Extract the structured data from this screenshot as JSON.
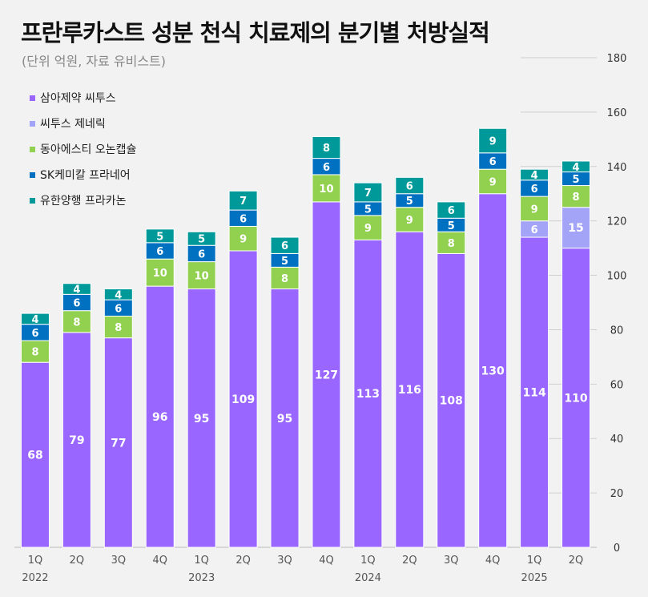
{
  "title": "프란루카스트 성분 천식 치료제의 분기별 처방실적",
  "subtitle": "(단위 억원, 자료 유비스트)",
  "legend": [
    {
      "label": "삼아제약 씨투스",
      "color": "#9966ff"
    },
    {
      "label": "씨투스 제네릭",
      "color": "#a3a3f7"
    },
    {
      "label": "동아에스티 오논캡슐",
      "color": "#92d050"
    },
    {
      "label": "SK케미칼 프라네어",
      "color": "#0070c0"
    },
    {
      "label": "유한양행 프라카논",
      "color": "#00999a"
    }
  ],
  "chart_data": {
    "type": "bar",
    "stacked": true,
    "categories": [
      "1Q",
      "2Q",
      "3Q",
      "4Q",
      "1Q",
      "2Q",
      "3Q",
      "4Q",
      "1Q",
      "2Q",
      "3Q",
      "4Q",
      "1Q",
      "2Q"
    ],
    "year_labels": [
      {
        "label": "2022",
        "category_index": 0
      },
      {
        "label": "2023",
        "category_index": 4
      },
      {
        "label": "2024",
        "category_index": 8
      },
      {
        "label": "2025",
        "category_index": 12
      }
    ],
    "series": [
      {
        "name": "삼아제약 씨투스",
        "color": "#9966ff",
        "values": [
          68,
          79,
          77,
          96,
          95,
          109,
          95,
          127,
          113,
          116,
          108,
          130,
          114,
          110
        ]
      },
      {
        "name": "씨투스 제네릭",
        "color": "#a3a3f7",
        "values": [
          null,
          null,
          null,
          null,
          null,
          null,
          null,
          null,
          null,
          null,
          null,
          null,
          6,
          15
        ]
      },
      {
        "name": "동아에스티 오논캡슐",
        "color": "#92d050",
        "values": [
          8,
          8,
          8,
          10,
          10,
          9,
          8,
          10,
          9,
          9,
          8,
          9,
          9,
          8
        ]
      },
      {
        "name": "SK케미칼 프라네어",
        "color": "#0070c0",
        "values": [
          6,
          6,
          6,
          6,
          6,
          6,
          5,
          6,
          5,
          5,
          5,
          6,
          6,
          5
        ]
      },
      {
        "name": "유한양행 프라카논",
        "color": "#00999a",
        "values": [
          4,
          4,
          4,
          5,
          5,
          7,
          6,
          8,
          7,
          6,
          6,
          9,
          4,
          4
        ]
      }
    ],
    "y_ticks": [
      0,
      20,
      40,
      60,
      80,
      100,
      120,
      140,
      160,
      180
    ],
    "ylim": [
      0,
      180
    ],
    "grid": false,
    "legend_position": "top-left"
  }
}
